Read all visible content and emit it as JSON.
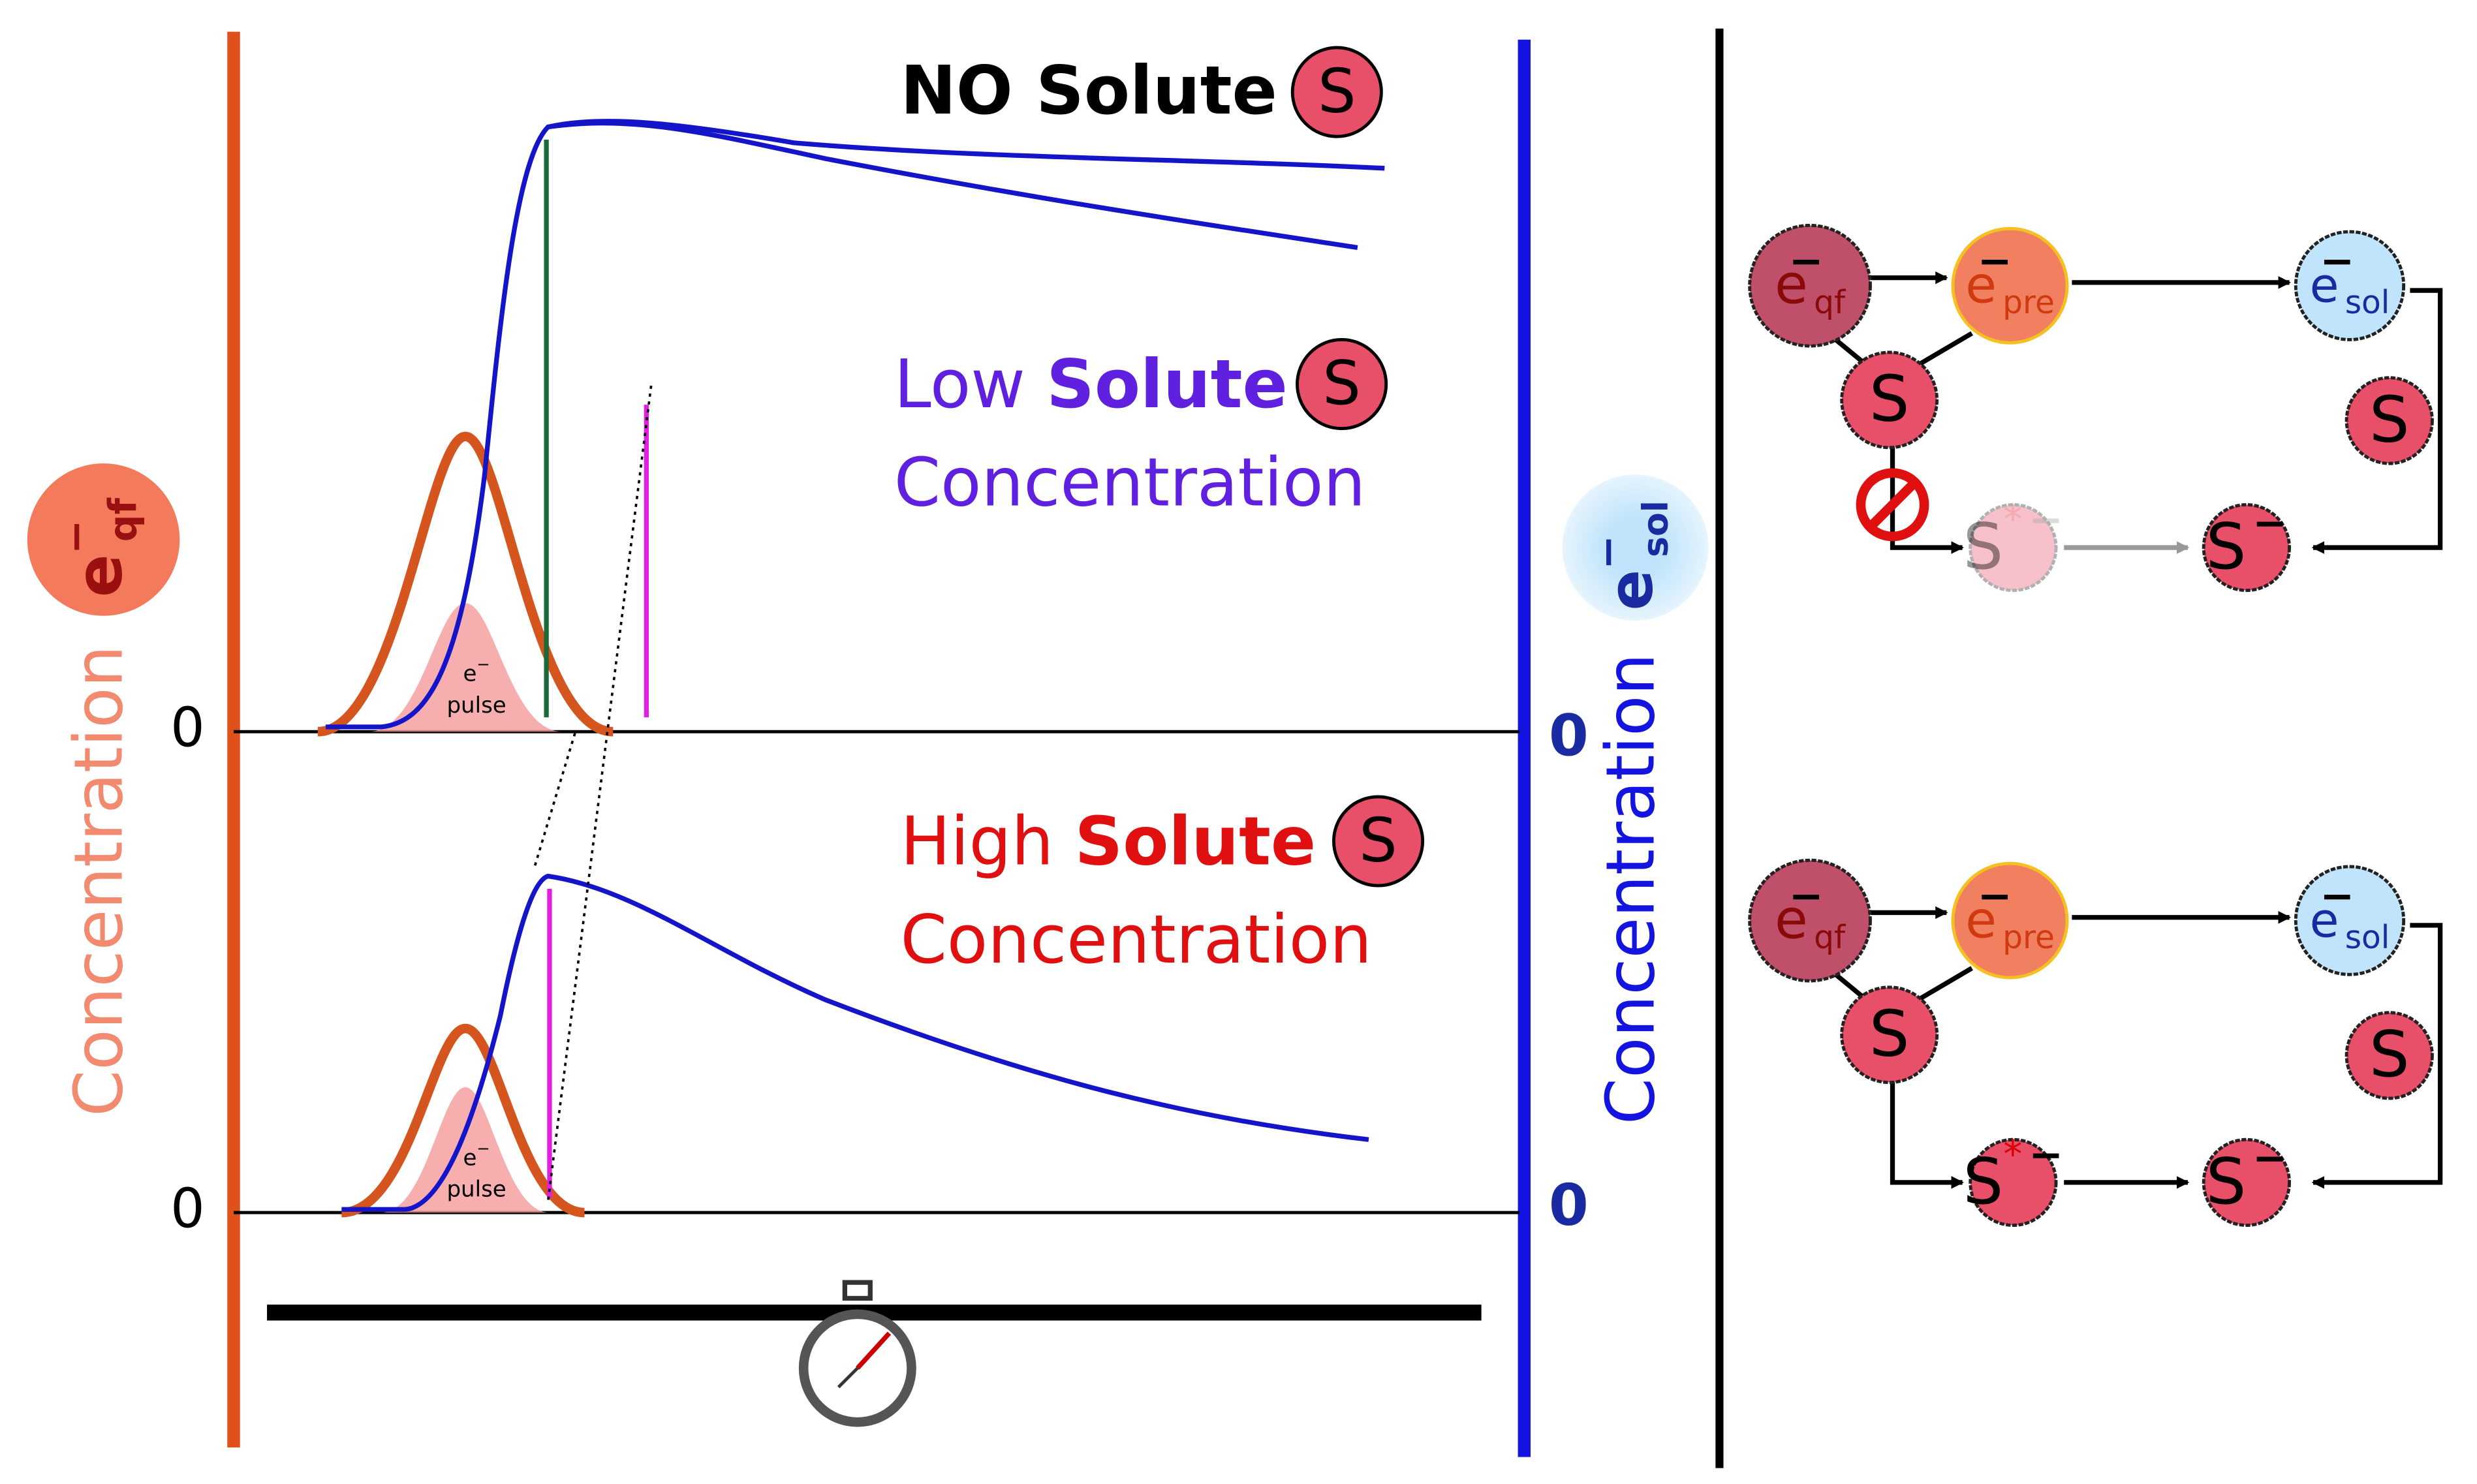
{
  "graph": {
    "no_solute": {
      "text": "NO Solute",
      "symbol": "S"
    },
    "low_solute": {
      "word1": "Low",
      "word2": "Solute",
      "word3": "Concentration",
      "symbol": "S"
    },
    "high_solute": {
      "word1": "High",
      "word2": "Solute",
      "word3": "Concentration",
      "symbol": "S"
    },
    "zero_left": [
      "0",
      "0"
    ],
    "zero_right": [
      "0",
      "0"
    ],
    "pulses": [
      {
        "base": "e",
        "charge": "−",
        "word": "pulse"
      },
      {
        "base": "e",
        "charge": "−",
        "word": "pulse"
      }
    ],
    "left_axis": {
      "label": "Concentration",
      "species": {
        "base": "e",
        "charge": "−",
        "sub": "qf"
      }
    },
    "right_axis": {
      "label": "Concentration",
      "species": {
        "base": "e",
        "charge": "−",
        "sub": "sol"
      }
    }
  },
  "schemes": [
    {
      "e_qf": {
        "base": "e",
        "charge": "−",
        "sub": "qf"
      },
      "e_pre": {
        "base": "e",
        "charge": "−",
        "sub": "pre"
      },
      "e_sol": {
        "base": "e",
        "charge": "−",
        "sub": "sol"
      },
      "s_a": {
        "base": "S"
      },
      "s_b": {
        "base": "S"
      },
      "s_star": {
        "base": "S",
        "mark": "*",
        "charge": "−"
      },
      "s_minus": {
        "base": "S",
        "charge": "−"
      }
    },
    {
      "e_qf": {
        "base": "e",
        "charge": "−",
        "sub": "qf"
      },
      "e_pre": {
        "base": "e",
        "charge": "−",
        "sub": "pre"
      },
      "e_sol": {
        "base": "e",
        "charge": "−",
        "sub": "sol"
      },
      "s_a": {
        "base": "S"
      },
      "s_b": {
        "base": "S"
      },
      "s_star": {
        "base": "S",
        "mark": "*",
        "charge": "−"
      },
      "s_minus": {
        "base": "S",
        "charge": "−"
      }
    }
  ]
}
